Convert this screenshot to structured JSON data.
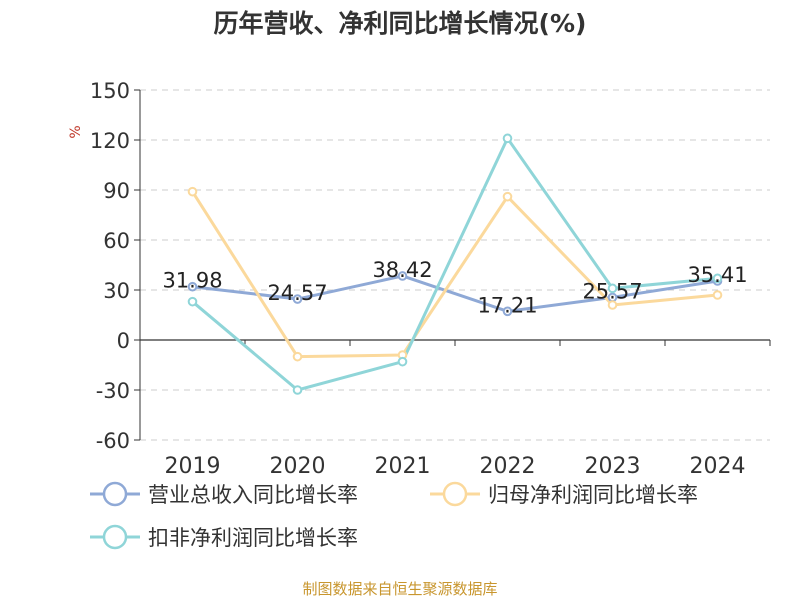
{
  "chart_data": {
    "type": "line",
    "title": "历年营收、净利同比增长情况(%)",
    "ylabel": "%",
    "xlabel": "",
    "x": [
      "2019",
      "2020",
      "2021",
      "2022",
      "2023",
      "2024"
    ],
    "yticks": [
      "150",
      "120",
      "90",
      "60",
      "30",
      "0",
      "-30",
      "-60"
    ],
    "ylim": [
      -60,
      150
    ],
    "grid": true,
    "legend_position": "bottom",
    "series": [
      {
        "name": "营业总收入同比增长率",
        "values": [
          31.98,
          24.57,
          38.42,
          17.21,
          25.57,
          35.41
        ],
        "labels": [
          "31.98",
          "24.57",
          "38.42",
          "17.21",
          "25.57",
          "35.41"
        ],
        "color": "#8fa9d6"
      },
      {
        "name": "归母净利润同比增长率",
        "values": [
          89,
          -10,
          -9,
          86,
          21,
          27
        ],
        "color": "#fbd99c"
      },
      {
        "name": "扣非净利润同比增长率",
        "values": [
          23,
          -30,
          -13,
          121,
          31,
          37
        ],
        "color": "#8fd5d8"
      }
    ]
  },
  "footer": "制图数据来自恒生聚源数据库"
}
